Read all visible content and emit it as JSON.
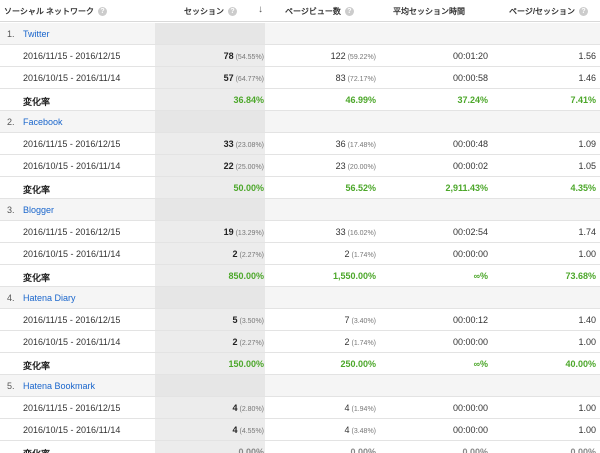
{
  "header": {
    "dimension": "ソーシャル ネットワーク",
    "sessions": "セッション",
    "sort_arrow": "↓",
    "pageviews": "ページビュー数",
    "avg_duration": "平均セッション時間",
    "pages_per_session": "ページ/セッション",
    "help_glyph": "?"
  },
  "change_label": "変化率",
  "groups": [
    {
      "num": "1.",
      "name": "Twitter",
      "rows": [
        {
          "date": "2016/11/15 - 2016/12/15",
          "sessions": "78",
          "sessions_pct": "(54.55%)",
          "pageviews": "122",
          "pageviews_pct": "(59.22%)",
          "duration": "00:01:20",
          "pps": "1.56"
        },
        {
          "date": "2016/10/15 - 2016/11/14",
          "sessions": "57",
          "sessions_pct": "(64.77%)",
          "pageviews": "83",
          "pageviews_pct": "(72.17%)",
          "duration": "00:00:58",
          "pps": "1.46"
        }
      ],
      "change": {
        "sessions": "36.84%",
        "pageviews": "46.99%",
        "duration": "37.24%",
        "pps": "7.41%"
      }
    },
    {
      "num": "2.",
      "name": "Facebook",
      "rows": [
        {
          "date": "2016/11/15 - 2016/12/15",
          "sessions": "33",
          "sessions_pct": "(23.08%)",
          "pageviews": "36",
          "pageviews_pct": "(17.48%)",
          "duration": "00:00:48",
          "pps": "1.09"
        },
        {
          "date": "2016/10/15 - 2016/11/14",
          "sessions": "22",
          "sessions_pct": "(25.00%)",
          "pageviews": "23",
          "pageviews_pct": "(20.00%)",
          "duration": "00:00:02",
          "pps": "1.05"
        }
      ],
      "change": {
        "sessions": "50.00%",
        "pageviews": "56.52%",
        "duration": "2,911.43%",
        "pps": "4.35%"
      }
    },
    {
      "num": "3.",
      "name": "Blogger",
      "rows": [
        {
          "date": "2016/11/15 - 2016/12/15",
          "sessions": "19",
          "sessions_pct": "(13.29%)",
          "pageviews": "33",
          "pageviews_pct": "(16.02%)",
          "duration": "00:02:54",
          "pps": "1.74"
        },
        {
          "date": "2016/10/15 - 2016/11/14",
          "sessions": "2",
          "sessions_pct": "(2.27%)",
          "pageviews": "2",
          "pageviews_pct": "(1.74%)",
          "duration": "00:00:00",
          "pps": "1.00"
        }
      ],
      "change": {
        "sessions": "850.00%",
        "pageviews": "1,550.00%",
        "duration": "∞%",
        "pps": "73.68%"
      }
    },
    {
      "num": "4.",
      "name": "Hatena Diary",
      "rows": [
        {
          "date": "2016/11/15 - 2016/12/15",
          "sessions": "5",
          "sessions_pct": "(3.50%)",
          "pageviews": "7",
          "pageviews_pct": "(3.40%)",
          "duration": "00:00:12",
          "pps": "1.40"
        },
        {
          "date": "2016/10/15 - 2016/11/14",
          "sessions": "2",
          "sessions_pct": "(2.27%)",
          "pageviews": "2",
          "pageviews_pct": "(1.74%)",
          "duration": "00:00:00",
          "pps": "1.00"
        }
      ],
      "change": {
        "sessions": "150.00%",
        "pageviews": "250.00%",
        "duration": "∞%",
        "pps": "40.00%"
      }
    },
    {
      "num": "5.",
      "name": "Hatena Bookmark",
      "rows": [
        {
          "date": "2016/11/15 - 2016/12/15",
          "sessions": "4",
          "sessions_pct": "(2.80%)",
          "pageviews": "4",
          "pageviews_pct": "(1.94%)",
          "duration": "00:00:00",
          "pps": "1.00"
        },
        {
          "date": "2016/10/15 - 2016/11/14",
          "sessions": "4",
          "sessions_pct": "(4.55%)",
          "pageviews": "4",
          "pageviews_pct": "(3.48%)",
          "duration": "00:00:00",
          "pps": "1.00"
        }
      ],
      "change": {
        "sessions": "0.00%",
        "pageviews": "0.00%",
        "duration": "0.00%",
        "pps": "0.00%",
        "neutral": true
      }
    }
  ],
  "colors": {
    "link": "#1a66cc",
    "positive": "#4ca72a",
    "neutral": "#888888",
    "sorted_column_bg": "#ececec"
  }
}
